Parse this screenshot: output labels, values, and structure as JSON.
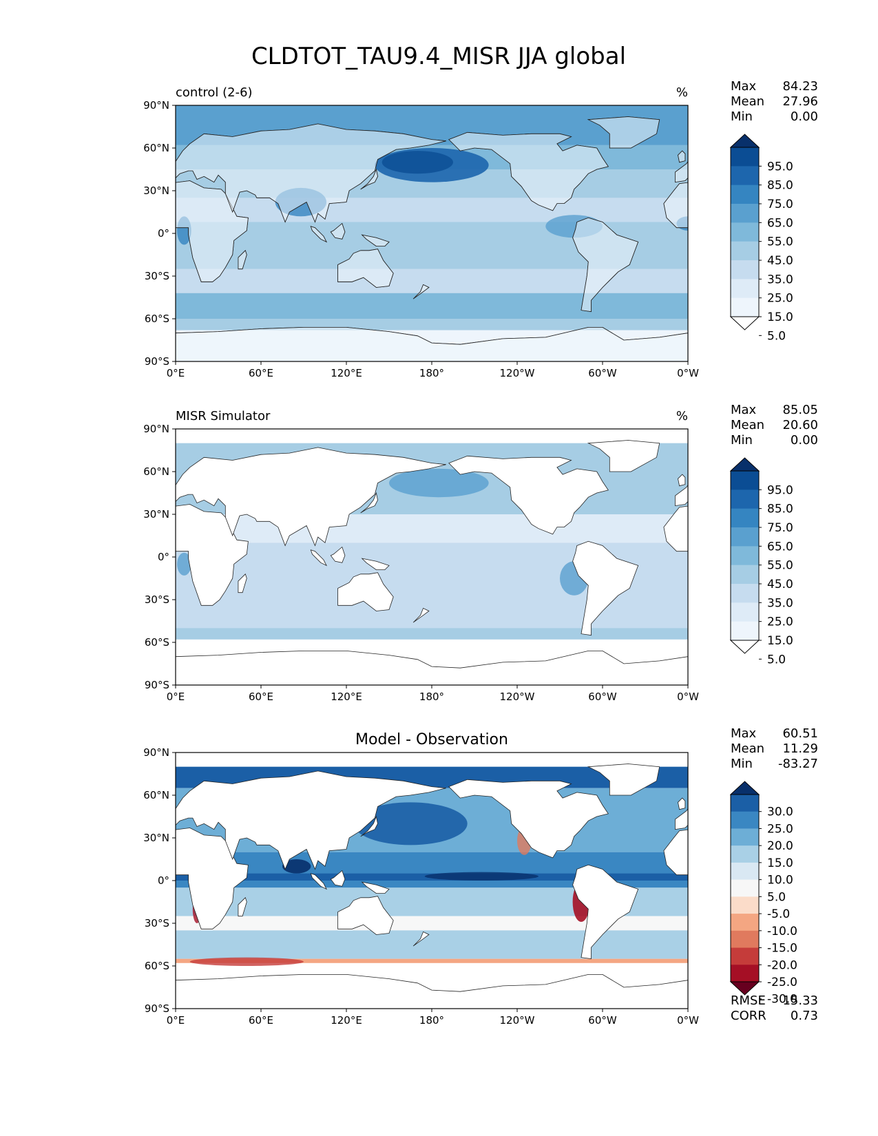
{
  "title": "CLDTOT_TAU9.4_MISR JJA global",
  "x_ticks": [
    "0°E",
    "60°E",
    "120°E",
    "180°",
    "120°W",
    "60°W",
    "0°W"
  ],
  "y_ticks": [
    "90°N",
    "60°N",
    "30°N",
    "0°",
    "30°S",
    "60°S",
    "90°S"
  ],
  "panels": [
    {
      "left_title": "control (2-6)",
      "center_title": "",
      "units": "%",
      "stats": {
        "Max": "84.23",
        "Mean": "27.96",
        "Min": "0.00"
      },
      "colorbar": {
        "labels": [
          "95.0",
          "85.0",
          "75.0",
          "65.0",
          "55.0",
          "45.0",
          "35.0",
          "25.0",
          "15.0",
          "5.0"
        ],
        "colors": [
          "#08306b",
          "#0b4d94",
          "#1d66ad",
          "#3585c1",
          "#5aa0cf",
          "#7fb9da",
          "#a6cde4",
          "#c6dcef",
          "#deebf7",
          "#eef5fc",
          "#ffffff"
        ]
      }
    },
    {
      "left_title": "MISR Simulator",
      "center_title": "",
      "units": "%",
      "stats": {
        "Max": "85.05",
        "Mean": "20.60",
        "Min": "0.00"
      },
      "colorbar": {
        "labels": [
          "95.0",
          "85.0",
          "75.0",
          "65.0",
          "55.0",
          "45.0",
          "35.0",
          "25.0",
          "15.0",
          "5.0"
        ],
        "colors": [
          "#08306b",
          "#0b4d94",
          "#1d66ad",
          "#3585c1",
          "#5aa0cf",
          "#7fb9da",
          "#a6cde4",
          "#c6dcef",
          "#deebf7",
          "#eef5fc",
          "#ffffff"
        ]
      }
    },
    {
      "left_title": "",
      "center_title": "Model - Observation",
      "units": "",
      "stats": {
        "Max": "60.51",
        "Mean": "11.29",
        "Min": "-83.27"
      },
      "extra_stats": {
        "RMSE": "15.33",
        "CORR": "0.73"
      },
      "colorbar": {
        "labels": [
          "30.0",
          "25.0",
          "20.0",
          "15.0",
          "10.0",
          "5.0",
          "-5.0",
          "-10.0",
          "-15.0",
          "-20.0",
          "-25.0",
          "-30.0"
        ],
        "colors": [
          "#08306b",
          "#1b5fa6",
          "#3a87c2",
          "#6daed6",
          "#a9d0e6",
          "#d9e8f3",
          "#f7f7f7",
          "#fbdcc9",
          "#f4a682",
          "#e07a5e",
          "#c53c3a",
          "#a50f25",
          "#67001f"
        ]
      }
    }
  ],
  "chart_data": [
    {
      "type": "heatmap",
      "title": "control (2-6)",
      "units": "%",
      "xlim": [
        0,
        360
      ],
      "ylim": [
        -90,
        90
      ],
      "grid": false
    },
    {
      "type": "heatmap",
      "title": "MISR Simulator",
      "units": "%",
      "xlim": [
        0,
        360
      ],
      "ylim": [
        -90,
        90
      ],
      "grid": false
    },
    {
      "type": "heatmap",
      "title": "Model - Observation",
      "xlim": [
        0,
        360
      ],
      "ylim": [
        -90,
        90
      ],
      "grid": false
    }
  ]
}
